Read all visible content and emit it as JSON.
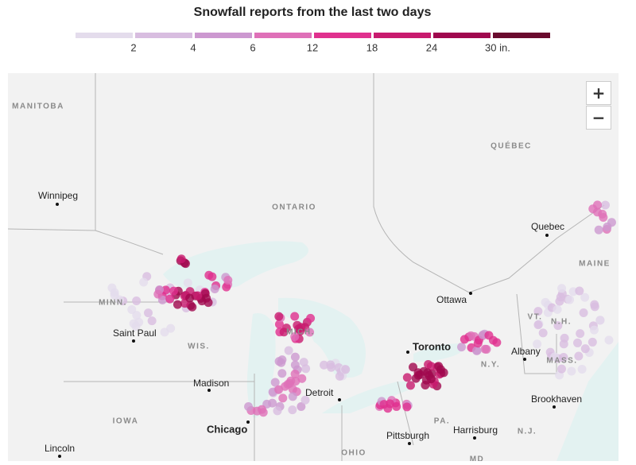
{
  "header": {
    "title": "Snowfall reports from the last two days"
  },
  "legend": {
    "colors": [
      "#e4dcec",
      "#d8bde0",
      "#cc98d0",
      "#df70b8",
      "#e0308e",
      "#c81a6e",
      "#a0084e",
      "#6a0a2e"
    ],
    "labels": [
      "2",
      "4",
      "6",
      "12",
      "18",
      "24",
      "30 in."
    ]
  },
  "controls": {
    "zoom_in": "+",
    "zoom_out": "−"
  },
  "map": {
    "cities": [
      "Winnipeg",
      "Quebec",
      "Ottawa",
      "Saint Paul",
      "Madison",
      "Toronto",
      "Detroit",
      "Chicago",
      "Albany",
      "Brookhaven",
      "Pittsburgh",
      "Harrisburg",
      "Lincoln"
    ],
    "regions": [
      "MANITOBA",
      "QUÉBEC",
      "ONTARIO",
      "MAINE",
      "MINN.",
      "WIS.",
      "MICH.",
      "VT.",
      "N.H.",
      "N.Y.",
      "MASS.",
      "IOWA",
      "PA.",
      "N.J.",
      "OHIO",
      "MD"
    ]
  }
}
